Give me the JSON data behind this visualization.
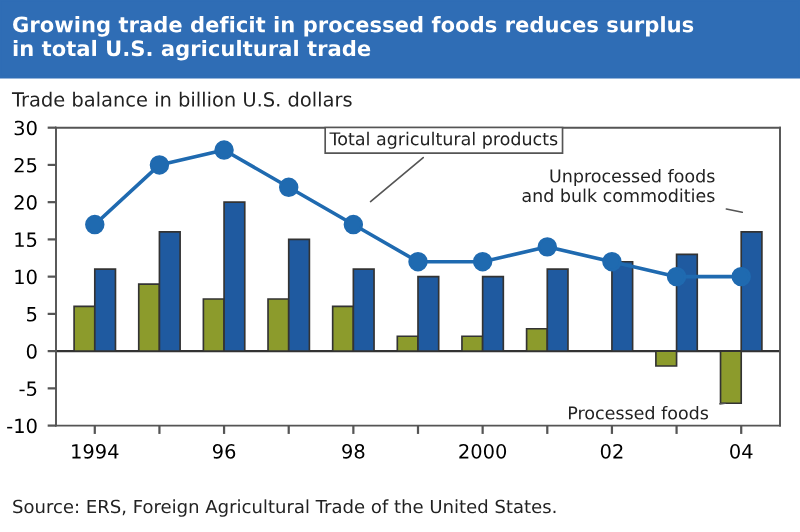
{
  "chart_data": {
    "type": "bar",
    "title": "Growing trade deficit in processed foods reduces surplus\nin total U.S. agricultural trade",
    "ylabel": "Trade balance in billion U.S. dollars",
    "categories": [
      "1994",
      null,
      "96",
      null,
      "98",
      null,
      "2000",
      null,
      "02",
      null,
      "04"
    ],
    "series": [
      {
        "name": "Processed foods",
        "color": "#8c9b2c",
        "values": [
          6,
          9,
          7,
          7,
          6,
          2,
          2,
          3,
          null,
          -2,
          -7
        ]
      },
      {
        "name": "Unprocessed foods\nand bulk commodities",
        "color": "#1f5aa0",
        "values": [
          11,
          16,
          20,
          15,
          11,
          10,
          10,
          11,
          12,
          13,
          16
        ]
      },
      {
        "name": "Total agricultural products",
        "type": "line",
        "color": "#1f6ab0",
        "marker": "circle",
        "values": [
          17,
          25,
          27,
          22,
          17,
          12,
          12,
          14,
          12,
          10,
          10
        ]
      }
    ],
    "ylim": [
      -10,
      30
    ],
    "yticks": [
      -10,
      -5,
      0,
      5,
      10,
      15,
      20,
      25,
      30
    ],
    "grid": false,
    "legend": false,
    "ref_lines": [
      {
        "axis": "y",
        "value": 0,
        "color": "#333333"
      }
    ],
    "annotations": [
      "Source: ERS, Foreign Agricultural Trade of the United States."
    ]
  }
}
